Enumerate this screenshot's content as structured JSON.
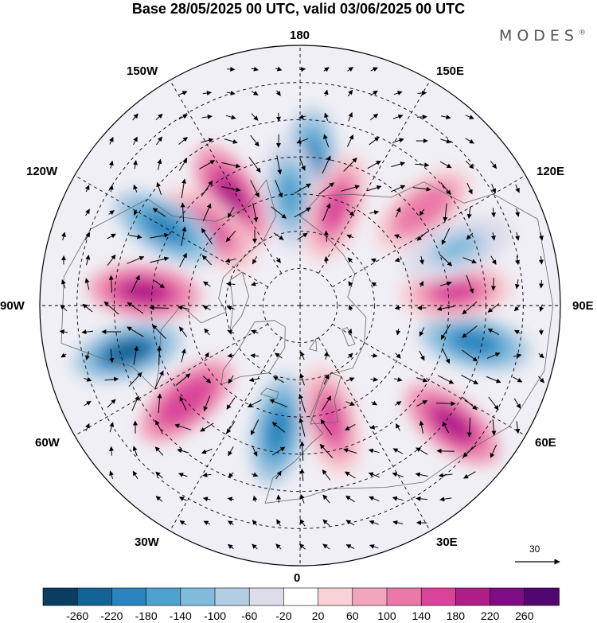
{
  "title": "Base 28/05/2025 00 UTC, valid 03/06/2025 00 UTC",
  "brand": "MODES",
  "brand_mark": "®",
  "longitude_labels": {
    "top": "180",
    "bottom": "0",
    "left": "90W",
    "right": "90E",
    "upper_left_150": "150W",
    "upper_left_120": "120W",
    "upper_right_150": "150E",
    "upper_right_120": "120E",
    "lower_left_60": "60W",
    "lower_left_30": "30W",
    "lower_right_60": "60E",
    "lower_right_30": "30E"
  },
  "vector_scale": {
    "label": "30"
  },
  "colorbar": {
    "ticks": [
      "-260",
      "-220",
      "-180",
      "-140",
      "-100",
      "-60",
      "-20",
      "20",
      "60",
      "100",
      "140",
      "180",
      "220",
      "260"
    ],
    "colors": [
      "#0b3d62",
      "#136495",
      "#2a84bd",
      "#4fa1cf",
      "#82bcdd",
      "#b3cde3",
      "#dcdceb",
      "#ffffff",
      "#f8d2d6",
      "#f2a6bd",
      "#ea78a9",
      "#d9449a",
      "#b01e8a",
      "#7e0c84",
      "#52066f"
    ]
  },
  "anomaly_centers": [
    {
      "lon": 176,
      "lat": 52,
      "value": -180
    },
    {
      "lon": -175,
      "lat": 60,
      "value": -140
    },
    {
      "lon": 160,
      "lat": 62,
      "value": 160
    },
    {
      "lon": 128,
      "lat": 48,
      "value": 140
    },
    {
      "lon": -148,
      "lat": 55,
      "value": 190
    },
    {
      "lon": -130,
      "lat": 58,
      "value": 160
    },
    {
      "lon": -120,
      "lat": 48,
      "value": -200
    },
    {
      "lon": -95,
      "lat": 48,
      "value": 200
    },
    {
      "lon": -75,
      "lat": 42,
      "value": -230
    },
    {
      "lon": -50,
      "lat": 50,
      "value": 180
    },
    {
      "lon": -10,
      "lat": 56,
      "value": -200
    },
    {
      "lon": 15,
      "lat": 58,
      "value": 160
    },
    {
      "lon": 52,
      "lat": 38,
      "value": 190
    },
    {
      "lon": 78,
      "lat": 42,
      "value": -180
    },
    {
      "lon": 95,
      "lat": 48,
      "value": 160
    },
    {
      "lon": 110,
      "lat": 45,
      "value": -100
    }
  ]
}
